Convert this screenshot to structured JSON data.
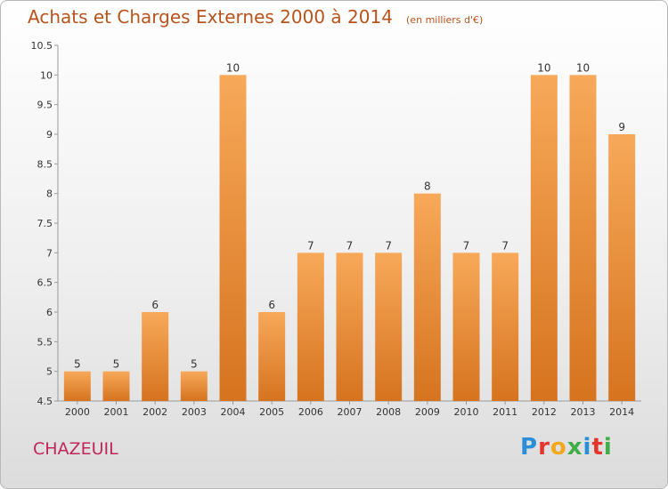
{
  "header": {
    "title": "Achats et Charges Externes 2000 à 2014",
    "subtitle": "(en milliers d'€)"
  },
  "footer": {
    "place": "CHAZEUIL",
    "brand": [
      "P",
      "r",
      "o",
      "x",
      "i",
      "t",
      "i"
    ],
    "brand_colors": [
      "#2a8fd8",
      "#e5352d",
      "#f2a81d",
      "#3fae49",
      "#2a8fd8",
      "#e5352d",
      "#3fae49"
    ]
  },
  "chart_data": {
    "type": "bar",
    "title": "Achats et Charges Externes 2000 à 2014",
    "subtitle": "(en milliers d'€)",
    "xlabel": "",
    "ylabel": "",
    "categories": [
      "2000",
      "2001",
      "2002",
      "2003",
      "2004",
      "2005",
      "2006",
      "2007",
      "2008",
      "2009",
      "2010",
      "2011",
      "2012",
      "2013",
      "2014"
    ],
    "values": [
      5,
      5,
      6,
      5,
      10,
      6,
      7,
      7,
      7,
      8,
      7,
      7,
      10,
      10,
      9
    ],
    "value_labels": [
      "5",
      "5",
      "6",
      "5",
      "10",
      "6",
      "7",
      "7",
      "7",
      "8",
      "7",
      "7",
      "10",
      "10",
      "9"
    ],
    "ylim": [
      4.5,
      10.5
    ],
    "yticks": [
      "4.5",
      "5",
      "5.5",
      "6",
      "6.5",
      "7",
      "7.5",
      "8",
      "8.5",
      "9",
      "9.5",
      "10",
      "10.5"
    ],
    "grid": false,
    "bar_color": "#f0923c"
  }
}
